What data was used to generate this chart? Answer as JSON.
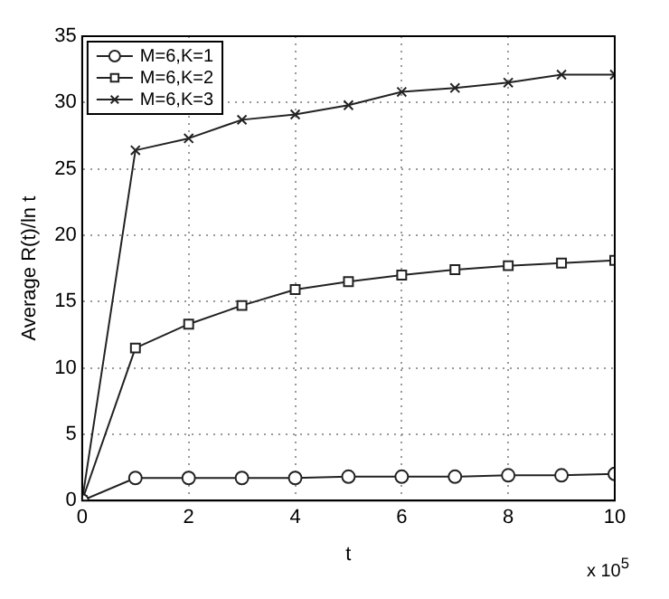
{
  "chart_data": {
    "type": "line",
    "xlabel": "t",
    "ylabel": "Average R(t)/ln t",
    "x": [
      0,
      1,
      2,
      3,
      4,
      5,
      6,
      7,
      8,
      9,
      10
    ],
    "series": [
      {
        "name": "M=6,K=1",
        "color": "#222222",
        "marker": "circle",
        "values": [
          0,
          1.7,
          1.7,
          1.7,
          1.7,
          1.8,
          1.8,
          1.8,
          1.9,
          1.9,
          2.0
        ]
      },
      {
        "name": "M=6,K=2",
        "color": "#222222",
        "marker": "square",
        "values": [
          0,
          11.5,
          13.3,
          14.7,
          15.9,
          16.5,
          17.0,
          17.4,
          17.7,
          17.9,
          18.1
        ]
      },
      {
        "name": "M=6,K=3",
        "color": "#222222",
        "marker": "cross",
        "values": [
          0,
          26.4,
          27.3,
          28.7,
          29.1,
          29.8,
          30.8,
          31.1,
          31.5,
          32.1,
          32.1
        ]
      }
    ],
    "xlim": [
      0,
      10
    ],
    "xticks": [
      0,
      2,
      4,
      6,
      8,
      10
    ],
    "ylim": [
      0,
      35
    ],
    "yticks": [
      0,
      5,
      10,
      15,
      20,
      25,
      30,
      35
    ],
    "grid": true,
    "legend": "top left",
    "line_style": "solid",
    "annotations": [
      "x 10$^{5}$"
    ]
  }
}
